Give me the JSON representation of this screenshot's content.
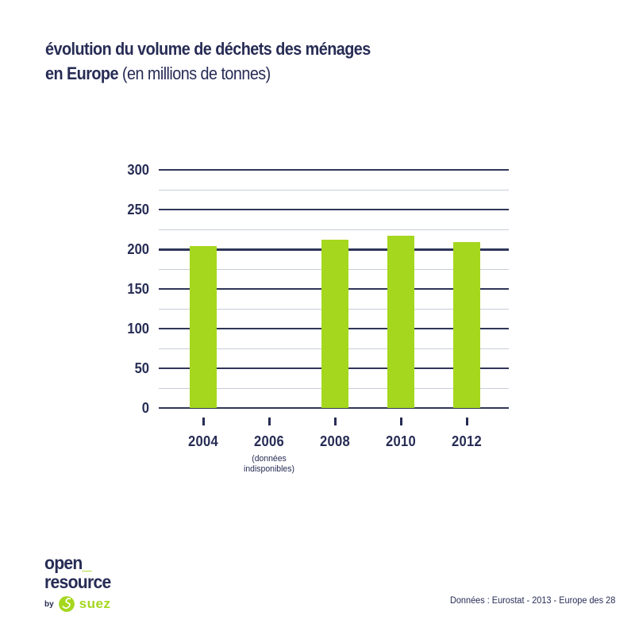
{
  "header": {
    "title_line1": "évolution du volume de déchets des ménages",
    "title_line2_bold": "en Europe",
    "title_line2_light": " (en millions de tonnes)"
  },
  "chart_data": {
    "type": "bar",
    "title": "évolution du volume de déchets des ménages en Europe",
    "unit": "en millions de tonnes",
    "categories": [
      "2004",
      "2006",
      "2008",
      "2010",
      "2012"
    ],
    "values": [
      204,
      null,
      212,
      217,
      209
    ],
    "missing_note": {
      "category": "2006",
      "lines": [
        "(données",
        "indisponibles)"
      ]
    },
    "xlabel": "",
    "ylabel": "",
    "ylim": [
      0,
      300
    ],
    "yticks": [
      0,
      50,
      100,
      150,
      200,
      250,
      300
    ],
    "minor_tick_start": 25,
    "minor_tick_step": 50,
    "grid": true,
    "legend": false,
    "bar_color": "#a5d71e",
    "major_grid_color": "#303659",
    "minor_grid_color": "#c9cdd8"
  },
  "footer": {
    "logo_line1": "open",
    "logo_underscore": "_",
    "logo_line2": "resource",
    "logo_by": "by",
    "suez_text": "suez",
    "source": "Données : Eurostat - 2013 - Europe des 28"
  },
  "colors": {
    "navy": "#272c55",
    "green": "#a5d71e",
    "minor_grid": "#c9cdd8"
  }
}
